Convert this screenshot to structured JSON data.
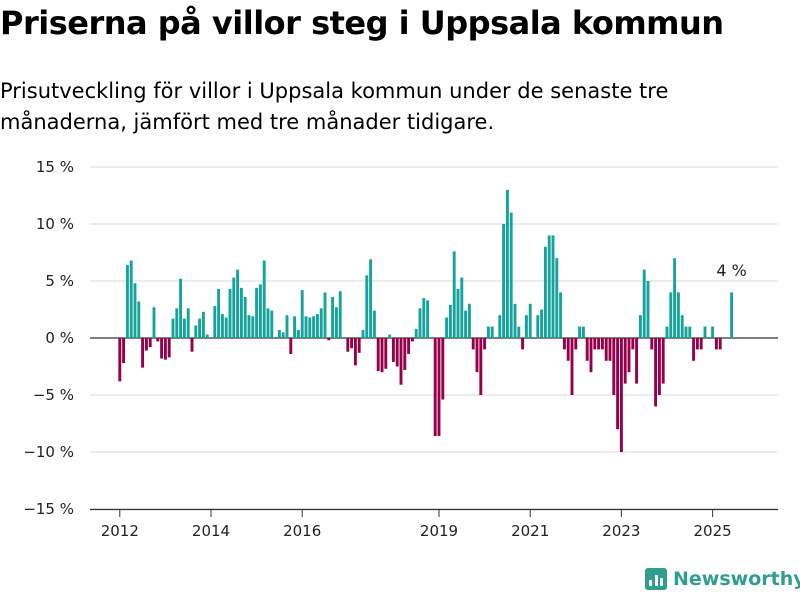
{
  "header": {
    "title": "Priserna på villor steg i Uppsala kommun",
    "subtitle": "Prisutveckling för villor i Uppsala kommun under de senaste tre månaderna, jämfört med tre månader tidigare."
  },
  "brand": {
    "name": "Newsworthy",
    "icon": "bar-chart-icon",
    "color": "#2f9e91"
  },
  "chart_data": {
    "type": "bar",
    "x_start": "2011-12",
    "y_tick_labels": [
      "15 %",
      "10 %",
      "5 %",
      "0 %",
      "−5 %",
      "−10 %",
      "−15 %"
    ],
    "y_ticks": [
      15,
      10,
      5,
      0,
      -5,
      -10,
      -15
    ],
    "ylim": [
      -15,
      15
    ],
    "x_tick_labels": [
      "2012",
      "2014",
      "2016",
      "2019",
      "2021",
      "2023",
      "2025"
    ],
    "x_tick_positions": [
      "2012-01",
      "2014-01",
      "2016-01",
      "2019-01",
      "2021-01",
      "2023-01",
      "2025-01"
    ],
    "annotation": {
      "text": "4 %",
      "month": "2025-06"
    },
    "positive_color": "#16a39b",
    "negative_color": "#96004a",
    "grid": true,
    "values": [
      0,
      -3.8,
      -2.2,
      6.4,
      6.8,
      4.8,
      3.2,
      -2.6,
      -1.1,
      -0.8,
      2.7,
      -0.3,
      -1.8,
      -1.9,
      -1.7,
      1.7,
      2.6,
      5.2,
      1.7,
      2.6,
      -1.2,
      1.1,
      1.7,
      2.3,
      0.3,
      0,
      2.8,
      4.3,
      2.1,
      1.8,
      4.3,
      5.3,
      6.0,
      4.4,
      3.6,
      2.0,
      1.9,
      4.4,
      4.7,
      6.8,
      2.6,
      2.4,
      0,
      0.7,
      0.5,
      2.0,
      -1.4,
      1.9,
      0.7,
      4.2,
      1.9,
      1.8,
      1.9,
      2.1,
      2.6,
      4.0,
      -0.2,
      3.6,
      2.7,
      4.1,
      0,
      -1.2,
      -0.9,
      -2.4,
      -1.3,
      0.7,
      5.5,
      6.9,
      2.4,
      -2.9,
      -3.0,
      -2.7,
      0.3,
      -2.1,
      -2.5,
      -4.1,
      -2.8,
      -1.4,
      -0.3,
      0.8,
      2.6,
      3.5,
      3.3,
      0,
      -8.6,
      -8.6,
      -5.4,
      1.8,
      2.9,
      7.6,
      4.3,
      5.3,
      2.4,
      3.0,
      -1.0,
      -3.0,
      -5.0,
      -1.0,
      1.0,
      1.0,
      0,
      2.0,
      10.0,
      13.0,
      11.0,
      3.0,
      1.0,
      -1.0,
      2.0,
      3.0,
      0,
      2.0,
      2.5,
      8.0,
      9.0,
      9.0,
      7.0,
      4.0,
      -1.0,
      -2.0,
      -5.0,
      -1.0,
      1.0,
      1.0,
      -2.0,
      -3.0,
      -1.0,
      -1.0,
      -1.0,
      -2.0,
      -2.0,
      -5.0,
      -8.0,
      -10.0,
      -4.0,
      -3.0,
      -1.0,
      -4.0,
      2.0,
      6.0,
      5.0,
      -1.0,
      -6.0,
      -5.0,
      -4.0,
      1.0,
      4.0,
      7.0,
      4.0,
      2.0,
      1.0,
      1.0,
      -2.0,
      -1.0,
      -1.0,
      1.0,
      0,
      1.0,
      -1.0,
      -1.0,
      0,
      0,
      4.0
    ]
  }
}
